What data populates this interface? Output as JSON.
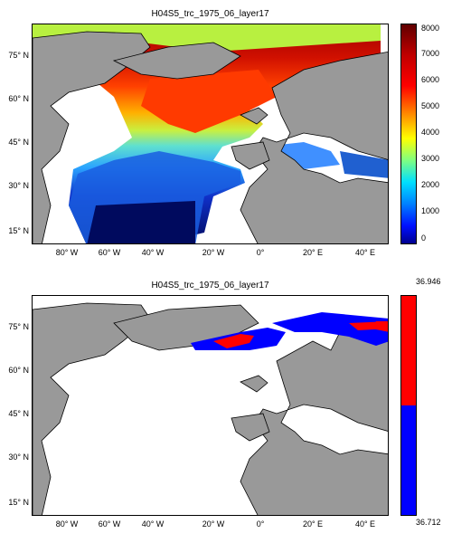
{
  "panels": [
    {
      "title": "H04S5_trc_1975_06_layer17",
      "y_ticks": [
        "75° N",
        "60° N",
        "45° N",
        "30° N",
        "15° N"
      ],
      "x_ticks": [
        "80° W",
        "60° W",
        "40° W",
        "20° W",
        "0°",
        "20° E",
        "40° E"
      ],
      "colorbar_ticks": [
        "8000",
        "7000",
        "6000",
        "5000",
        "4000",
        "3000",
        "2000",
        "1000",
        "0"
      ]
    },
    {
      "title": "H04S5_trc_1975_06_layer17",
      "y_ticks": [
        "75° N",
        "60° N",
        "45° N",
        "30° N",
        "15° N"
      ],
      "x_ticks": [
        "80° W",
        "60° W",
        "40° W",
        "20° W",
        "0°",
        "20° E",
        "40° E"
      ],
      "colorbar_max": "36.946",
      "colorbar_min": "36.712"
    }
  ],
  "colors": {
    "land": "#999999",
    "high": "#ff0000",
    "low": "#0000ff"
  }
}
